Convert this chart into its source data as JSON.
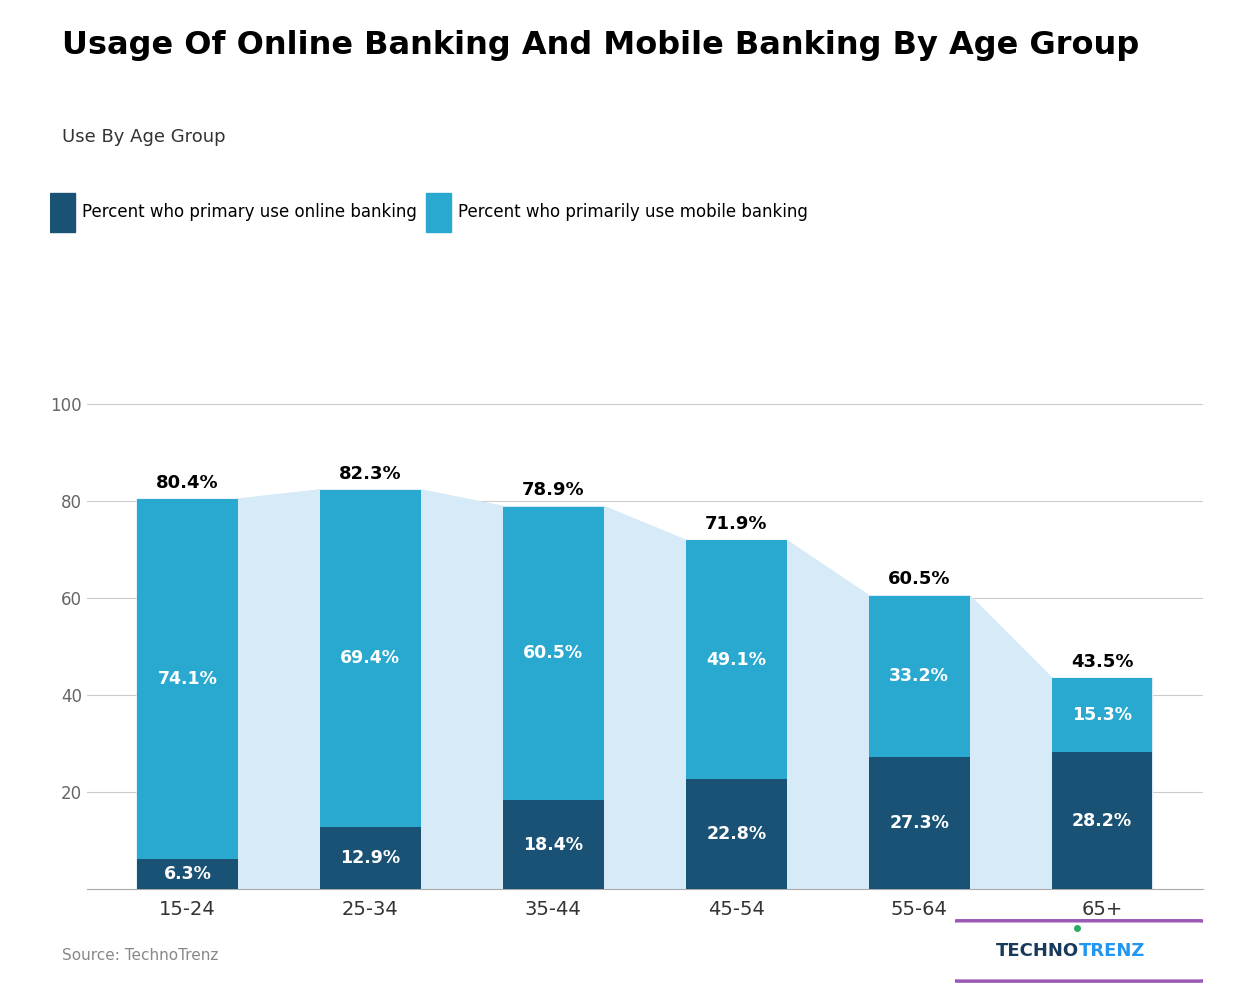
{
  "title": "Usage Of Online Banking And Mobile Banking By Age Group",
  "subtitle": "Use By Age Group",
  "legend_online": "Percent who primary use online banking",
  "legend_mobile": "Percent who primarily use mobile banking",
  "source": "Source: TechnoTrenz",
  "categories": [
    "15-24",
    "25-34",
    "35-44",
    "45-54",
    "55-64",
    "65+"
  ],
  "online_values": [
    6.3,
    12.9,
    18.4,
    22.8,
    27.3,
    28.2
  ],
  "mobile_values": [
    74.1,
    69.4,
    60.5,
    49.1,
    33.2,
    15.3
  ],
  "total_values": [
    80.4,
    82.3,
    78.9,
    71.9,
    60.5,
    43.5
  ],
  "color_online": "#1a5276",
  "color_mobile": "#29a8d0",
  "color_area": "#d6eaf8",
  "color_background": "#ffffff",
  "ylim": [
    0,
    110
  ],
  "yticks": [
    20,
    40,
    60,
    80,
    100
  ]
}
